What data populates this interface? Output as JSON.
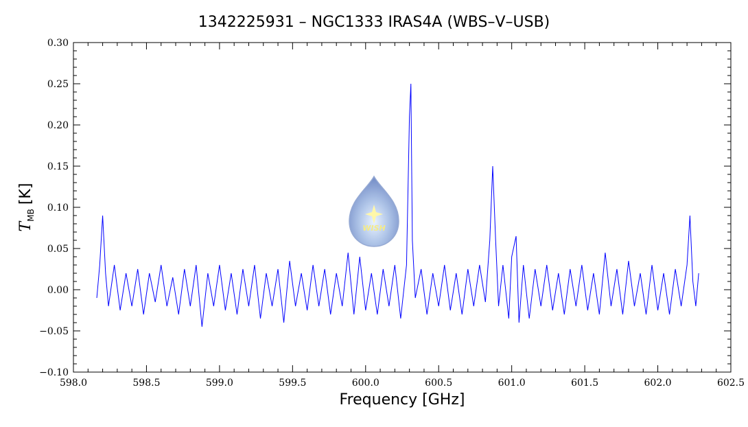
{
  "chart_data": {
    "type": "line",
    "title": "1342225931 – NGC1333 IRAS4A (WBS–V–USB)",
    "xlabel": "Frequency [GHz]",
    "ylabel": {
      "symbol": "T",
      "subscript": "MB",
      "unit": "[K]"
    },
    "logo_text": "WISH",
    "color": "#0000ff",
    "xlim": [
      598.0,
      602.5
    ],
    "ylim": [
      -0.1,
      0.3
    ],
    "xticks": [
      {
        "value": 598.0,
        "label": "598.0"
      },
      598.5,
      {
        "value": 599.0,
        "label": "599.0"
      },
      599.5,
      {
        "value": 600.0,
        "label": "600.0"
      },
      600.5,
      {
        "value": 601.0,
        "label": "601.0"
      },
      601.5,
      {
        "value": 602.0,
        "label": "602.0"
      },
      602.5
    ],
    "yticks": [
      {
        "value": -0.1,
        "label": "−0.10"
      },
      {
        "value": -0.05,
        "label": "−0.05"
      },
      {
        "value": 0,
        "label": "0.00"
      },
      {
        "value": 0.05,
        "label": "0.05"
      },
      {
        "value": 0.1,
        "label": "0.10"
      },
      {
        "value": 0.15,
        "label": "0.15"
      },
      {
        "value": 0.2,
        "label": "0.20"
      },
      {
        "value": 0.25,
        "label": "0.25"
      },
      {
        "value": 0.3,
        "label": "0.30"
      }
    ],
    "x": [
      598.16,
      598.18,
      598.2,
      598.22,
      598.24,
      598.28,
      598.32,
      598.36,
      598.4,
      598.44,
      598.48,
      598.52,
      598.56,
      598.6,
      598.64,
      598.68,
      598.72,
      598.76,
      598.8,
      598.84,
      598.88,
      598.92,
      598.96,
      599.0,
      599.04,
      599.08,
      599.12,
      599.16,
      599.2,
      599.24,
      599.28,
      599.32,
      599.36,
      599.4,
      599.44,
      599.48,
      599.52,
      599.56,
      599.6,
      599.64,
      599.68,
      599.72,
      599.76,
      599.8,
      599.84,
      599.88,
      599.92,
      599.96,
      600.0,
      600.04,
      600.08,
      600.12,
      600.16,
      600.2,
      600.24,
      600.28,
      600.3,
      600.31,
      600.32,
      600.34,
      600.38,
      600.42,
      600.46,
      600.5,
      600.54,
      600.58,
      600.62,
      600.66,
      600.7,
      600.74,
      600.78,
      600.82,
      600.85,
      600.87,
      600.89,
      600.91,
      600.94,
      600.98,
      601.0,
      601.03,
      601.05,
      601.08,
      601.12,
      601.16,
      601.2,
      601.24,
      601.28,
      601.32,
      601.36,
      601.4,
      601.44,
      601.48,
      601.52,
      601.56,
      601.6,
      601.64,
      601.68,
      601.72,
      601.76,
      601.8,
      601.84,
      601.88,
      601.92,
      601.96,
      602.0,
      602.04,
      602.08,
      602.12,
      602.16,
      602.2,
      602.22,
      602.24,
      602.26,
      602.28
    ],
    "values": [
      -0.01,
      0.03,
      0.09,
      0.02,
      -0.02,
      0.03,
      -0.025,
      0.02,
      -0.02,
      0.025,
      -0.03,
      0.02,
      -0.015,
      0.03,
      -0.02,
      0.015,
      -0.03,
      0.025,
      -0.02,
      0.03,
      -0.045,
      0.02,
      -0.02,
      0.03,
      -0.025,
      0.02,
      -0.03,
      0.025,
      -0.02,
      0.03,
      -0.035,
      0.02,
      -0.02,
      0.025,
      -0.04,
      0.035,
      -0.02,
      0.02,
      -0.025,
      0.03,
      -0.02,
      0.025,
      -0.03,
      0.02,
      -0.02,
      0.045,
      -0.03,
      0.04,
      -0.025,
      0.02,
      -0.03,
      0.025,
      -0.02,
      0.03,
      -0.035,
      0.03,
      0.21,
      0.25,
      0.06,
      -0.01,
      0.025,
      -0.03,
      0.02,
      -0.02,
      0.03,
      -0.025,
      0.02,
      -0.03,
      0.025,
      -0.02,
      0.03,
      -0.015,
      0.06,
      0.15,
      0.06,
      -0.02,
      0.03,
      -0.035,
      0.04,
      0.065,
      -0.04,
      0.03,
      -0.035,
      0.025,
      -0.02,
      0.03,
      -0.025,
      0.02,
      -0.03,
      0.025,
      -0.02,
      0.03,
      -0.025,
      0.02,
      -0.03,
      0.045,
      -0.02,
      0.025,
      -0.03,
      0.035,
      -0.02,
      0.02,
      -0.03,
      0.03,
      -0.025,
      0.02,
      -0.03,
      0.025,
      -0.02,
      0.03,
      0.09,
      0.01,
      -0.02,
      0.02
    ]
  }
}
